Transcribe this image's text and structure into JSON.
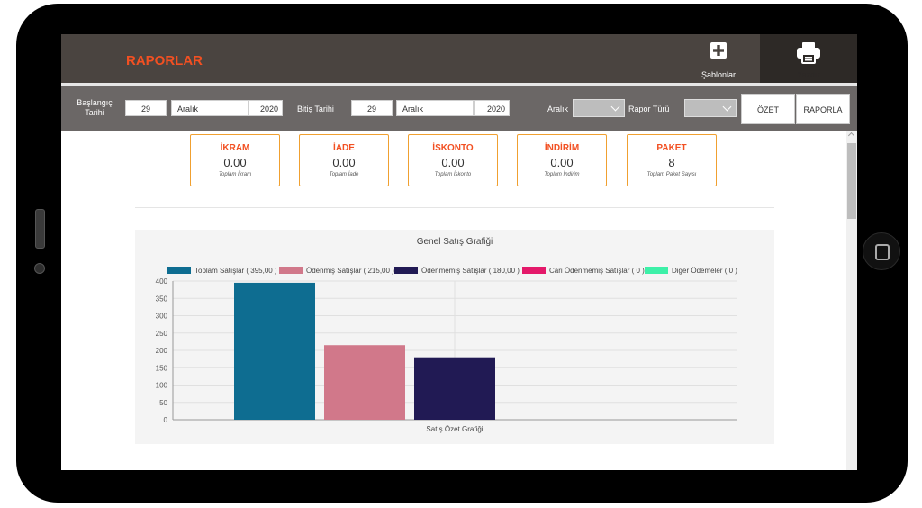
{
  "app": {
    "title": "RAPORLAR"
  },
  "toolbar": {
    "templates_label": "Şablonlar",
    "print_label": "Yazdır"
  },
  "filters": {
    "start_label": "Başlangıç Tarihi",
    "start_day": "29",
    "start_month": "Aralık",
    "start_year": "2020",
    "end_label": "Bitiş Tarihi",
    "end_day": "29",
    "end_month": "Aralık",
    "end_year": "2020",
    "range_label": "Aralık",
    "report_type_label": "Rapor Türü",
    "summary_button": "ÖZET",
    "report_button": "RAPORLA"
  },
  "cards": [
    {
      "title": "İKRAM",
      "value": "0.00",
      "sub": "Toplam İkram"
    },
    {
      "title": "İADE",
      "value": "0.00",
      "sub": "Toplam İade"
    },
    {
      "title": "İSKONTO",
      "value": "0.00",
      "sub": "Toplam İskonto"
    },
    {
      "title": "İNDİRİM",
      "value": "0.00",
      "sub": "Toplam İndirim"
    },
    {
      "title": "PAKET",
      "value": "8",
      "sub": "Toplam Paket Sayısı"
    }
  ],
  "colors": {
    "accent": "#f25022",
    "topbar": "#4a4440",
    "filterbar": "#6b6766"
  },
  "chart_data": {
    "type": "bar",
    "title": "Genel Satış Grafiği",
    "categories": [
      "Satış Özet Grafiği"
    ],
    "xlabel": "Satış Özet Grafiği",
    "ylabel": "",
    "ylim": [
      0,
      400
    ],
    "yticks": [
      0,
      50,
      100,
      150,
      200,
      250,
      300,
      350,
      400
    ],
    "grid": true,
    "legend_position": "top",
    "series": [
      {
        "name": "Toplam Satışlar ( 395,00 )",
        "values": [
          395
        ],
        "color": "#0e6d91"
      },
      {
        "name": "Ödenmiş Satışlar ( 215,00 )",
        "values": [
          215
        ],
        "color": "#d1788a"
      },
      {
        "name": "Ödenmemiş Satışlar ( 180,00 )",
        "values": [
          180
        ],
        "color": "#211a54"
      },
      {
        "name": "Cari Ödenmemiş Satışlar ( 0 )",
        "values": [
          0
        ],
        "color": "#e4196a"
      },
      {
        "name": "Diğer Ödemeler ( 0 )",
        "values": [
          0
        ],
        "color": "#3df0a8"
      }
    ]
  }
}
